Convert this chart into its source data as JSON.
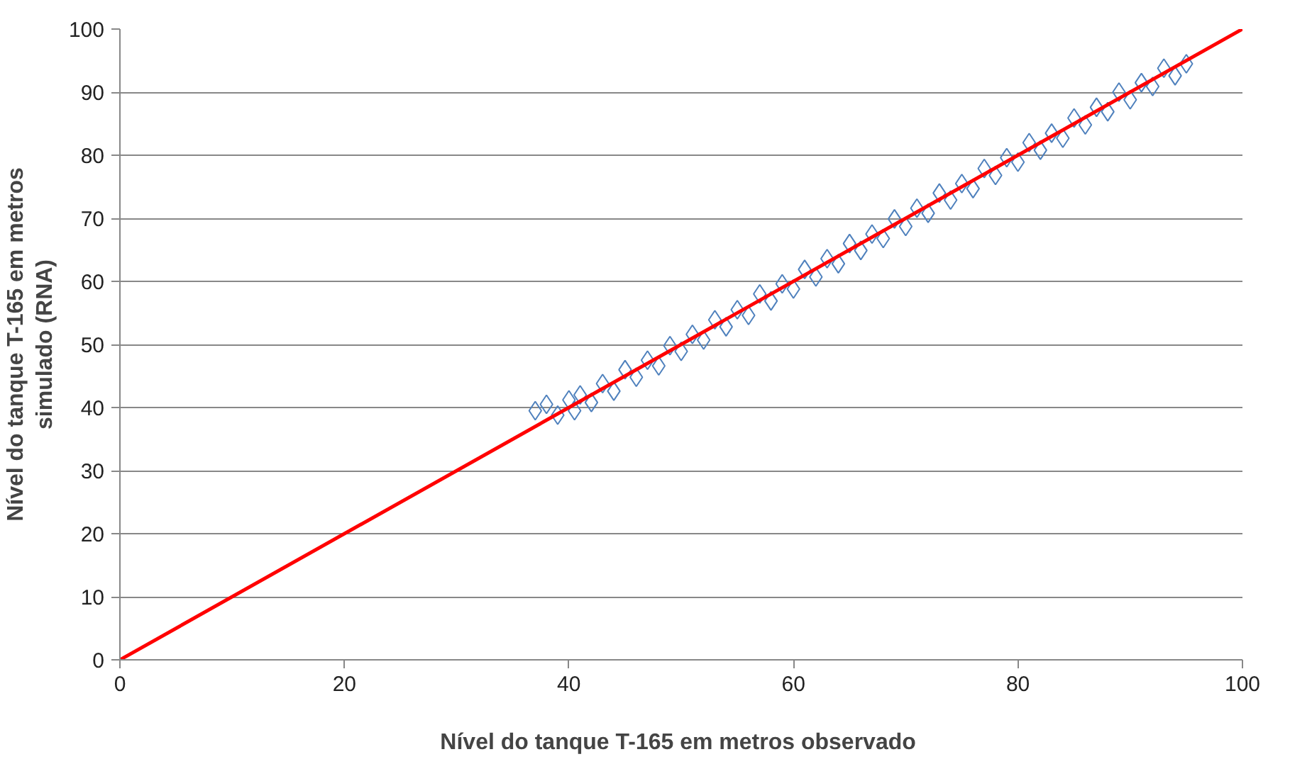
{
  "chart_data": {
    "type": "scatter",
    "xlabel": "Nível do tanque T-165 em metros  observado",
    "ylabel": "Nível do tanque T-165 em metros\nsimulado (RNA)",
    "xlim": [
      0,
      100
    ],
    "ylim": [
      0,
      100
    ],
    "xticks": [
      0,
      20,
      40,
      60,
      80,
      100
    ],
    "yticks": [
      0,
      10,
      20,
      30,
      40,
      50,
      60,
      70,
      80,
      90,
      100
    ],
    "grid": "y",
    "marker": "diamond",
    "series": [
      {
        "color": "#4f81bd",
        "x": [
          37,
          38,
          39,
          40,
          40.5,
          41,
          42,
          43,
          44,
          45,
          46,
          47,
          48,
          49,
          50,
          51,
          52,
          53,
          54,
          55,
          56,
          57,
          58,
          59,
          60,
          61,
          62,
          63,
          64,
          65,
          66,
          67,
          68,
          69,
          70,
          71,
          72,
          73,
          74,
          75,
          76,
          77,
          78,
          79,
          80,
          81,
          82,
          83,
          84,
          85,
          86,
          87,
          88,
          89,
          90,
          91,
          92,
          93,
          94,
          95
        ],
        "values": [
          39.5,
          40.5,
          38.8,
          41.2,
          39.5,
          42.0,
          40.8,
          43.8,
          42.6,
          46.0,
          44.8,
          47.5,
          46.6,
          49.8,
          48.9,
          51.6,
          50.7,
          53.9,
          52.8,
          55.5,
          54.6,
          58.0,
          56.9,
          59.6,
          58.8,
          61.9,
          60.7,
          63.6,
          62.8,
          66.0,
          64.9,
          67.5,
          66.8,
          69.9,
          68.7,
          71.6,
          70.8,
          74.0,
          72.9,
          75.5,
          74.7,
          77.9,
          76.8,
          79.6,
          78.9,
          82.0,
          80.8,
          83.5,
          82.7,
          85.9,
          84.8,
          87.6,
          86.9,
          90.0,
          88.8,
          91.5,
          90.9,
          93.8,
          92.6,
          94.5
        ]
      },
      {
        "type": "line",
        "color": "#ff0000",
        "x": [
          0,
          100
        ],
        "values": [
          0,
          100
        ],
        "marker": "none",
        "line_style": "solid"
      }
    ]
  }
}
